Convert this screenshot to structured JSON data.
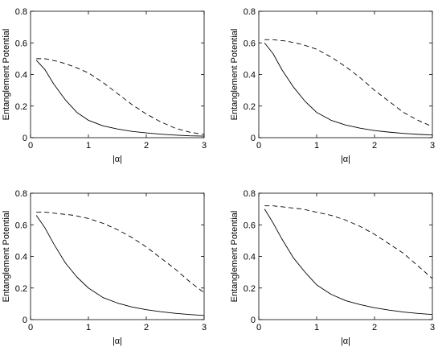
{
  "chart_data": [
    {
      "type": "line",
      "xlabel": "|α|",
      "ylabel": "Entanglement Potential",
      "xlim": [
        0,
        3
      ],
      "ylim": [
        0,
        0.8
      ],
      "xticks": [
        "0",
        "1",
        "2",
        "3"
      ],
      "yticks": [
        "0",
        "0.2",
        "0.4",
        "0.6",
        "0.8"
      ],
      "grid": false,
      "series": [
        {
          "style": "solid",
          "x": [
            0.1,
            0.25,
            0.4,
            0.6,
            0.8,
            1.0,
            1.25,
            1.5,
            1.75,
            2.0,
            2.25,
            2.5,
            2.75,
            3.0
          ],
          "y": [
            0.49,
            0.43,
            0.34,
            0.24,
            0.16,
            0.11,
            0.075,
            0.055,
            0.04,
            0.03,
            0.022,
            0.016,
            0.012,
            0.01
          ]
        },
        {
          "style": "dashed",
          "x": [
            0.1,
            0.25,
            0.5,
            0.75,
            1.0,
            1.25,
            1.5,
            1.75,
            2.0,
            2.25,
            2.5,
            2.75,
            3.0
          ],
          "y": [
            0.5,
            0.5,
            0.48,
            0.45,
            0.41,
            0.35,
            0.28,
            0.21,
            0.15,
            0.1,
            0.06,
            0.035,
            0.02
          ]
        }
      ]
    },
    {
      "type": "line",
      "xlabel": "|α|",
      "ylabel": "Entanglement Potential",
      "xlim": [
        0,
        3
      ],
      "ylim": [
        0,
        0.8
      ],
      "xticks": [
        "0",
        "1",
        "2",
        "3"
      ],
      "yticks": [
        "0",
        "0.2",
        "0.4",
        "0.6",
        "0.8"
      ],
      "grid": false,
      "series": [
        {
          "style": "solid",
          "x": [
            0.1,
            0.25,
            0.4,
            0.6,
            0.8,
            1.0,
            1.25,
            1.5,
            1.75,
            2.0,
            2.25,
            2.5,
            2.75,
            3.0
          ],
          "y": [
            0.6,
            0.53,
            0.43,
            0.32,
            0.23,
            0.16,
            0.11,
            0.08,
            0.06,
            0.045,
            0.035,
            0.027,
            0.021,
            0.017
          ]
        },
        {
          "style": "dashed",
          "x": [
            0.1,
            0.25,
            0.5,
            0.75,
            1.0,
            1.25,
            1.5,
            1.75,
            2.0,
            2.25,
            2.5,
            2.75,
            3.0
          ],
          "y": [
            0.62,
            0.62,
            0.61,
            0.59,
            0.56,
            0.51,
            0.45,
            0.38,
            0.3,
            0.23,
            0.16,
            0.11,
            0.07
          ]
        }
      ]
    },
    {
      "type": "line",
      "xlabel": "|α|",
      "ylabel": "Entanglement Potential",
      "xlim": [
        0,
        3
      ],
      "ylim": [
        0,
        0.8
      ],
      "xticks": [
        "0",
        "1",
        "2",
        "3"
      ],
      "yticks": [
        "0",
        "0.2",
        "0.4",
        "0.6",
        "0.8"
      ],
      "grid": false,
      "series": [
        {
          "style": "solid",
          "x": [
            0.1,
            0.25,
            0.4,
            0.6,
            0.8,
            1.0,
            1.25,
            1.5,
            1.75,
            2.0,
            2.25,
            2.5,
            2.75,
            3.0
          ],
          "y": [
            0.66,
            0.58,
            0.48,
            0.36,
            0.27,
            0.2,
            0.14,
            0.105,
            0.08,
            0.063,
            0.05,
            0.04,
            0.032,
            0.026
          ]
        },
        {
          "style": "dashed",
          "x": [
            0.1,
            0.25,
            0.5,
            0.75,
            1.0,
            1.25,
            1.5,
            1.75,
            2.0,
            2.25,
            2.5,
            2.75,
            3.0
          ],
          "y": [
            0.68,
            0.68,
            0.67,
            0.66,
            0.64,
            0.61,
            0.57,
            0.52,
            0.46,
            0.39,
            0.32,
            0.24,
            0.17
          ]
        }
      ]
    },
    {
      "type": "line",
      "xlabel": "|α|",
      "ylabel": "Entanglement Potential",
      "xlim": [
        0,
        3
      ],
      "ylim": [
        0,
        0.8
      ],
      "xticks": [
        "0",
        "1",
        "2",
        "3"
      ],
      "yticks": [
        "0",
        "0.2",
        "0.4",
        "0.6",
        "0.8"
      ],
      "grid": false,
      "series": [
        {
          "style": "solid",
          "x": [
            0.1,
            0.25,
            0.4,
            0.6,
            0.8,
            1.0,
            1.25,
            1.5,
            1.75,
            2.0,
            2.25,
            2.5,
            2.75,
            3.0
          ],
          "y": [
            0.7,
            0.61,
            0.51,
            0.39,
            0.3,
            0.22,
            0.16,
            0.12,
            0.095,
            0.075,
            0.06,
            0.048,
            0.039,
            0.032
          ]
        },
        {
          "style": "dashed",
          "x": [
            0.1,
            0.25,
            0.5,
            0.75,
            1.0,
            1.25,
            1.5,
            1.75,
            2.0,
            2.25,
            2.5,
            2.75,
            3.0
          ],
          "y": [
            0.72,
            0.72,
            0.71,
            0.7,
            0.68,
            0.66,
            0.63,
            0.59,
            0.54,
            0.48,
            0.42,
            0.34,
            0.26
          ]
        }
      ]
    }
  ]
}
